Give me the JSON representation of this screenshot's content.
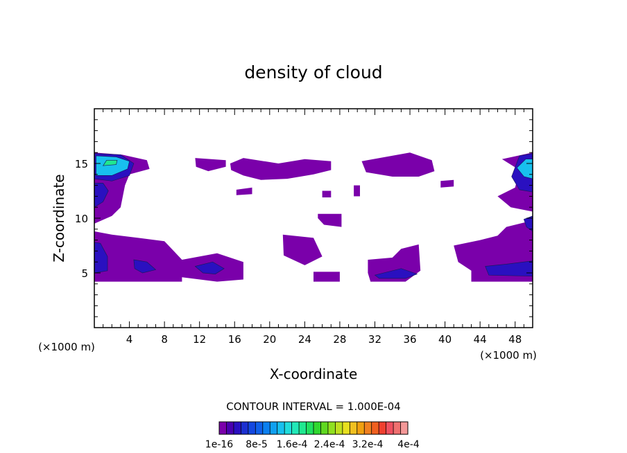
{
  "chart_data": {
    "type": "heatmap",
    "title": "density of cloud",
    "xlabel": "X-coordinate",
    "ylabel": "Z-coordinate",
    "x_unit": "(×1000 m)",
    "y_unit": "(×1000 m)",
    "xlim": [
      0,
      50
    ],
    "ylim": [
      0,
      20
    ],
    "x_ticks": [
      4,
      8,
      12,
      16,
      20,
      24,
      28,
      32,
      36,
      40,
      44,
      48
    ],
    "y_ticks": [
      5,
      10,
      15
    ],
    "contour_interval_text": "CONTOUR INTERVAL = 1.000E-04",
    "colorbar": {
      "colors": [
        "#7a00aa",
        "#4a00b0",
        "#2a10c0",
        "#1c30d0",
        "#1448e0",
        "#1060ea",
        "#0c80f0",
        "#10a0f0",
        "#18c0ee",
        "#20dcdc",
        "#22e8b8",
        "#20e890",
        "#20e060",
        "#30d830",
        "#60d820",
        "#90e020",
        "#c0e020",
        "#e8e020",
        "#f0c020",
        "#f0a010",
        "#f08020",
        "#f06020",
        "#f04030",
        "#f05060",
        "#f07070",
        "#f49898"
      ],
      "labels": [
        "1e-16",
        "8e-5",
        "1.6e-4",
        "2.4e-4",
        "3.2e-4",
        "4e-4"
      ]
    },
    "regions": [
      {
        "level": 1,
        "polygon": [
          [
            0,
            4.2
          ],
          [
            10,
            4.2
          ],
          [
            10,
            4.6
          ],
          [
            14,
            4.2
          ],
          [
            17,
            4.4
          ],
          [
            17,
            6
          ],
          [
            14,
            6.8
          ],
          [
            10,
            6.2
          ],
          [
            8,
            7.9
          ],
          [
            5,
            8.2
          ],
          [
            2,
            8.5
          ],
          [
            0,
            8.8
          ]
        ]
      },
      {
        "level": 1,
        "polygon": [
          [
            0,
            9.5
          ],
          [
            2,
            10.2
          ],
          [
            3,
            11
          ],
          [
            3.5,
            13
          ],
          [
            4,
            14
          ],
          [
            6.3,
            14.5
          ],
          [
            6,
            15.3
          ],
          [
            3.2,
            15.8
          ],
          [
            0,
            16
          ]
        ]
      },
      {
        "level": 1,
        "polygon": [
          [
            11.5,
            15.5
          ],
          [
            15,
            15.3
          ],
          [
            15,
            14.7
          ],
          [
            13,
            14.3
          ],
          [
            11.6,
            14.7
          ]
        ]
      },
      {
        "level": 1,
        "polygon": [
          [
            15.5,
            15
          ],
          [
            17,
            15.5
          ],
          [
            21,
            15
          ],
          [
            24,
            15.4
          ],
          [
            27,
            15.2
          ],
          [
            27,
            14.4
          ],
          [
            25,
            14
          ],
          [
            22,
            13.6
          ],
          [
            19,
            13.5
          ],
          [
            17,
            13.9
          ],
          [
            15.6,
            14.4
          ]
        ]
      },
      {
        "level": 1,
        "polygon": [
          [
            16.2,
            12.6
          ],
          [
            18,
            12.8
          ],
          [
            18,
            12.2
          ],
          [
            16.2,
            12.1
          ]
        ]
      },
      {
        "level": 1,
        "polygon": [
          [
            26,
            12.5
          ],
          [
            27,
            12.5
          ],
          [
            27,
            11.9
          ],
          [
            26,
            11.9
          ]
        ]
      },
      {
        "level": 1,
        "polygon": [
          [
            30.5,
            15.2
          ],
          [
            36,
            16
          ],
          [
            38.5,
            15.3
          ],
          [
            38.8,
            14.3
          ],
          [
            37,
            13.8
          ],
          [
            34,
            13.8
          ],
          [
            31,
            14.2
          ]
        ]
      },
      {
        "level": 1,
        "polygon": [
          [
            29.6,
            13
          ],
          [
            30.3,
            13
          ],
          [
            30.3,
            12
          ],
          [
            29.6,
            12
          ]
        ]
      },
      {
        "level": 1,
        "polygon": [
          [
            39.5,
            13.4
          ],
          [
            41,
            13.5
          ],
          [
            41,
            12.9
          ],
          [
            39.5,
            12.8
          ]
        ]
      },
      {
        "level": 1,
        "polygon": [
          [
            25.5,
            10.4
          ],
          [
            28.2,
            10.4
          ],
          [
            28.2,
            9.2
          ],
          [
            26.2,
            9.4
          ],
          [
            25.5,
            10
          ]
        ]
      },
      {
        "level": 1,
        "polygon": [
          [
            21.5,
            8.5
          ],
          [
            25,
            8.2
          ],
          [
            26,
            6.5
          ],
          [
            24,
            5.7
          ],
          [
            21.6,
            6.6
          ]
        ]
      },
      {
        "level": 1,
        "polygon": [
          [
            25,
            5.1
          ],
          [
            28,
            5.1
          ],
          [
            28,
            4.2
          ],
          [
            25,
            4.2
          ]
        ]
      },
      {
        "level": 1,
        "polygon": [
          [
            31.2,
            6.2
          ],
          [
            34,
            6.4
          ],
          [
            35,
            7.2
          ],
          [
            37,
            7.6
          ],
          [
            37.2,
            5.2
          ],
          [
            35.5,
            4.2
          ],
          [
            31.5,
            4.2
          ],
          [
            31.2,
            5
          ]
        ]
      },
      {
        "level": 1,
        "polygon": [
          [
            41,
            7.5
          ],
          [
            44,
            8
          ],
          [
            46,
            8.4
          ],
          [
            47,
            9.2
          ],
          [
            50,
            9.8
          ],
          [
            50,
            4.2
          ],
          [
            43,
            4.2
          ],
          [
            43,
            5.2
          ],
          [
            41.5,
            6
          ]
        ]
      },
      {
        "level": 1,
        "polygon": [
          [
            46,
            12
          ],
          [
            48,
            12.8
          ],
          [
            48.5,
            14.4
          ],
          [
            46.5,
            15.4
          ],
          [
            50,
            16
          ],
          [
            50,
            10.6
          ],
          [
            47.5,
            11
          ]
        ]
      },
      {
        "level": 3,
        "polygon": [
          [
            0,
            5
          ],
          [
            1.5,
            5.2
          ],
          [
            1.5,
            6.5
          ],
          [
            0.7,
            7.7
          ],
          [
            0,
            7.8
          ]
        ]
      },
      {
        "level": 3,
        "polygon": [
          [
            0,
            11
          ],
          [
            1,
            11.5
          ],
          [
            1.6,
            12.5
          ],
          [
            1,
            13.2
          ],
          [
            0,
            13.2
          ]
        ]
      },
      {
        "level": 3,
        "polygon": [
          [
            0,
            13.6
          ],
          [
            2,
            13.4
          ],
          [
            4,
            13.9
          ],
          [
            4.5,
            15
          ],
          [
            3,
            15.8
          ],
          [
            0,
            15.9
          ]
        ]
      },
      {
        "level": 3,
        "polygon": [
          [
            4.5,
            6.2
          ],
          [
            6,
            6
          ],
          [
            7,
            5.3
          ],
          [
            5.5,
            5
          ],
          [
            4.6,
            5.4
          ]
        ]
      },
      {
        "level": 3,
        "polygon": [
          [
            11.5,
            5.6
          ],
          [
            13.5,
            6
          ],
          [
            14.8,
            5.4
          ],
          [
            13.8,
            4.9
          ],
          [
            12.4,
            5
          ]
        ]
      },
      {
        "level": 3,
        "polygon": [
          [
            32,
            4.8
          ],
          [
            35,
            5.4
          ],
          [
            36.8,
            4.9
          ],
          [
            35.5,
            4.5
          ],
          [
            32.5,
            4.5
          ]
        ]
      },
      {
        "level": 3,
        "polygon": [
          [
            44.6,
            5.6
          ],
          [
            47,
            5.8
          ],
          [
            50,
            6.1
          ],
          [
            50,
            4.7
          ],
          [
            45,
            4.8
          ]
        ]
      },
      {
        "level": 3,
        "polygon": [
          [
            47.6,
            13.8
          ],
          [
            48.5,
            15.7
          ],
          [
            50,
            15.9
          ],
          [
            50,
            12.4
          ],
          [
            48.5,
            12.6
          ]
        ]
      },
      {
        "level": 3,
        "polygon": [
          [
            49,
            9.9
          ],
          [
            50,
            10.2
          ],
          [
            50,
            8.8
          ],
          [
            49.3,
            9.2
          ]
        ]
      },
      {
        "level": 9,
        "polygon": [
          [
            0.2,
            13.9
          ],
          [
            2,
            13.9
          ],
          [
            3.8,
            14.5
          ],
          [
            4,
            15.2
          ],
          [
            2.5,
            15.6
          ],
          [
            0.2,
            15.7
          ]
        ]
      },
      {
        "level": 9,
        "polygon": [
          [
            48.2,
            14.6
          ],
          [
            49.2,
            15.4
          ],
          [
            50,
            15.4
          ],
          [
            50,
            13.6
          ],
          [
            49,
            13.8
          ]
        ]
      },
      {
        "level": 12,
        "polygon": [
          [
            1,
            14.8
          ],
          [
            2.5,
            14.9
          ],
          [
            2.6,
            15.3
          ],
          [
            1.4,
            15.3
          ]
        ]
      }
    ]
  }
}
